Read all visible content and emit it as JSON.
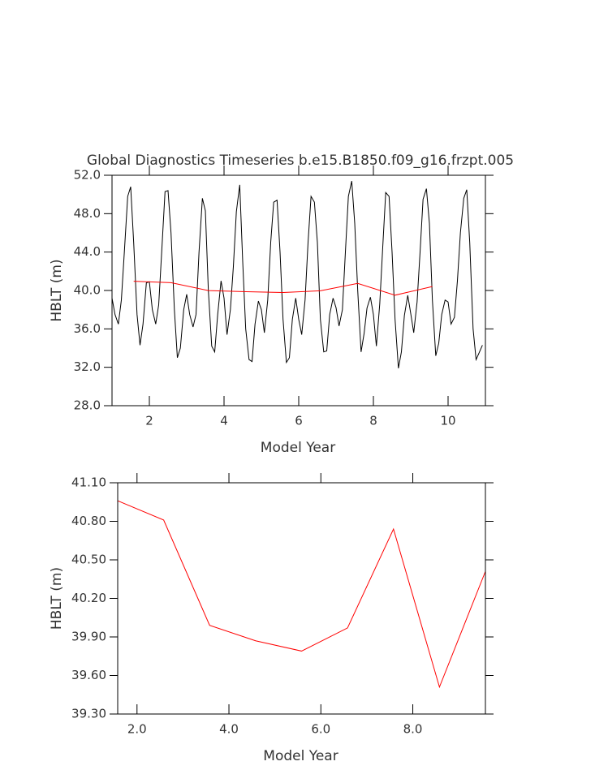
{
  "chart_data": [
    {
      "type": "line",
      "title": "Global Diagnostics Timeseries b.e15.B1850.f09_g16.frzpt.005",
      "xlabel": "Model Year",
      "ylabel": "HBLT (m)",
      "xlim": [
        1,
        11
      ],
      "ylim": [
        28,
        52
      ],
      "xticks": [
        2,
        4,
        6,
        8,
        10
      ],
      "yticks": [
        {
          "value": 28,
          "label": "28.0"
        },
        {
          "value": 32,
          "label": "32.0"
        },
        {
          "value": 36,
          "label": "36.0"
        },
        {
          "value": 40,
          "label": "40.0"
        },
        {
          "value": 44,
          "label": "44.0"
        },
        {
          "value": 48,
          "label": "48.0"
        },
        {
          "value": 52,
          "label": "52.0"
        }
      ],
      "series": [
        {
          "color": "#000000",
          "x": [
            1.0,
            1.08,
            1.17,
            1.25,
            1.33,
            1.42,
            1.5,
            1.58,
            1.67,
            1.75,
            1.83,
            1.92,
            2.0,
            2.08,
            2.17,
            2.25,
            2.33,
            2.42,
            2.5,
            2.58,
            2.67,
            2.75,
            2.83,
            2.92,
            3.0,
            3.08,
            3.17,
            3.25,
            3.33,
            3.42,
            3.5,
            3.58,
            3.67,
            3.75,
            3.83,
            3.92,
            4.0,
            4.08,
            4.17,
            4.25,
            4.33,
            4.42,
            4.5,
            4.58,
            4.67,
            4.75,
            4.83,
            4.92,
            5.0,
            5.08,
            5.17,
            5.25,
            5.33,
            5.42,
            5.5,
            5.58,
            5.67,
            5.75,
            5.83,
            5.92,
            6.0,
            6.08,
            6.17,
            6.25,
            6.33,
            6.42,
            6.5,
            6.58,
            6.67,
            6.75,
            6.83,
            6.92,
            7.0,
            7.08,
            7.17,
            7.25,
            7.33,
            7.42,
            7.5,
            7.58,
            7.67,
            7.75,
            7.83,
            7.92,
            8.0,
            8.08,
            8.17,
            8.25,
            8.33,
            8.42,
            8.5,
            8.58,
            8.67,
            8.75,
            8.83,
            8.92,
            9.0,
            9.08,
            9.17,
            9.25,
            9.33,
            9.42,
            9.5,
            9.58,
            9.67,
            9.75,
            9.83,
            9.92,
            10.0,
            10.08,
            10.17,
            10.25,
            10.33,
            10.42,
            10.5,
            10.58,
            10.67,
            10.75,
            10.83,
            10.92
          ],
          "values": [
            39.2,
            37.5,
            36.5,
            39.0,
            44.0,
            49.8,
            50.8,
            45.0,
            37.5,
            34.3,
            36.5,
            40.8,
            40.9,
            38.0,
            36.5,
            38.5,
            44.0,
            50.3,
            50.4,
            46.0,
            38.0,
            33.0,
            34.0,
            38.0,
            39.6,
            37.5,
            36.2,
            37.5,
            44.0,
            49.6,
            48.3,
            40.0,
            34.2,
            33.6,
            37.5,
            41.0,
            39.2,
            35.4,
            38.0,
            42.5,
            48.2,
            51.0,
            43.0,
            36.0,
            32.8,
            32.6,
            36.5,
            38.9,
            38.0,
            35.6,
            39.0,
            45.0,
            49.2,
            49.4,
            44.0,
            37.0,
            32.5,
            33.0,
            37.0,
            39.2,
            37.0,
            35.4,
            39.0,
            45.0,
            49.8,
            49.2,
            45.0,
            37.0,
            33.6,
            33.7,
            37.5,
            39.2,
            38.2,
            36.3,
            38.0,
            44.0,
            49.8,
            51.4,
            47.0,
            40.0,
            33.6,
            35.5,
            38.2,
            39.3,
            37.5,
            34.2,
            38.6,
            44.5,
            50.2,
            49.8,
            44.0,
            37.0,
            31.9,
            33.6,
            37.4,
            39.5,
            37.6,
            35.6,
            38.8,
            44.0,
            49.5,
            50.6,
            47.0,
            39.0,
            33.2,
            34.5,
            37.5,
            39.0,
            38.8,
            36.5,
            37.2,
            41.0,
            46.0,
            49.6,
            50.5,
            45.0,
            36.0,
            32.8,
            33.5,
            34.3
          ]
        },
        {
          "color": "#ff0000",
          "x": [
            1.58,
            2.58,
            3.58,
            4.58,
            5.58,
            6.58,
            7.58,
            8.58,
            9.58
          ],
          "values": [
            40.96,
            40.81,
            39.99,
            39.87,
            39.79,
            39.97,
            40.74,
            39.51,
            40.41
          ]
        }
      ]
    },
    {
      "type": "line",
      "xlabel": "Model Year",
      "ylabel": "HBLT (m)",
      "xlim": [
        1.58,
        9.58
      ],
      "ylim": [
        39.3,
        41.1
      ],
      "xticks": [
        {
          "value": 2,
          "label": "2.0"
        },
        {
          "value": 4,
          "label": "4.0"
        },
        {
          "value": 6,
          "label": "6.0"
        },
        {
          "value": 8,
          "label": "8.0"
        }
      ],
      "yticks": [
        {
          "value": 39.3,
          "label": "39.30"
        },
        {
          "value": 39.6,
          "label": "39.60"
        },
        {
          "value": 39.9,
          "label": "39.90"
        },
        {
          "value": 40.2,
          "label": "40.20"
        },
        {
          "value": 40.5,
          "label": "40.50"
        },
        {
          "value": 40.8,
          "label": "40.80"
        },
        {
          "value": 41.1,
          "label": "41.10"
        }
      ],
      "series": [
        {
          "color": "#ff0000",
          "x": [
            1.58,
            2.58,
            3.58,
            4.58,
            5.58,
            6.58,
            7.58,
            8.58,
            9.58
          ],
          "values": [
            40.96,
            40.81,
            39.99,
            39.87,
            39.79,
            39.97,
            40.74,
            39.51,
            40.41
          ]
        }
      ]
    }
  ]
}
